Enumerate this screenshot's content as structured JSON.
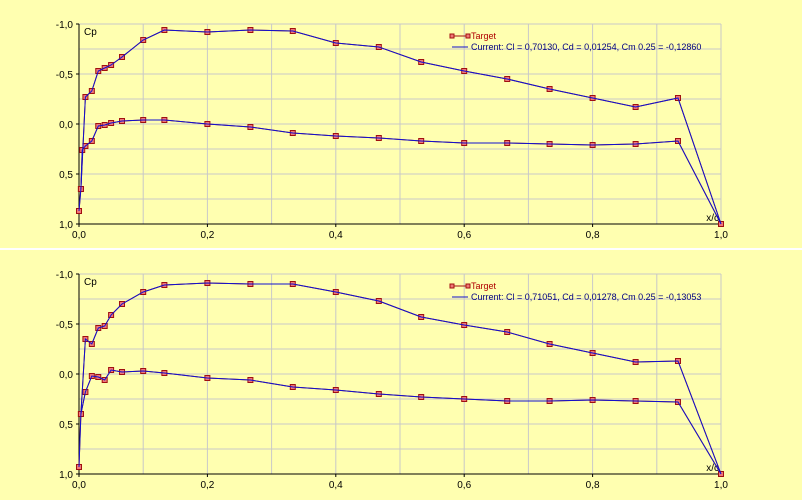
{
  "chart_data": [
    {
      "type": "line",
      "ylabel": "Cp",
      "xlabel": "x/c",
      "xlim": [
        0,
        1
      ],
      "ylim_inverted": [
        -1,
        1
      ],
      "x_ticks": [
        "0,0",
        "0,2",
        "0,4",
        "0,6",
        "0,8",
        "1,0"
      ],
      "y_ticks": [
        "-1,0",
        "-0,5",
        "0,0",
        "0,5",
        "1,0"
      ],
      "grid": true,
      "legend_position": "top-right",
      "series": [
        {
          "name": "Target",
          "markers": true,
          "upper": [
            [
              0,
              0.87
            ],
            [
              0.003,
              0.65
            ],
            [
              0.01,
              -0.27
            ],
            [
              0.02,
              -0.33
            ],
            [
              0.03,
              -0.53
            ],
            [
              0.04,
              -0.56
            ],
            [
              0.05,
              -0.59
            ],
            [
              0.067,
              -0.67
            ],
            [
              0.1,
              -0.84
            ],
            [
              0.133,
              -0.94
            ],
            [
              0.2,
              -0.92
            ],
            [
              0.267,
              -0.94
            ],
            [
              0.333,
              -0.93
            ],
            [
              0.4,
              -0.81
            ],
            [
              0.467,
              -0.77
            ],
            [
              0.533,
              -0.62
            ],
            [
              0.6,
              -0.53
            ],
            [
              0.667,
              -0.45
            ],
            [
              0.733,
              -0.35
            ],
            [
              0.8,
              -0.26
            ],
            [
              0.867,
              -0.17
            ],
            [
              0.933,
              -0.26
            ],
            [
              1.0,
              1.0
            ]
          ],
          "lower": [
            [
              0.003,
              0.65
            ],
            [
              0.005,
              0.26
            ],
            [
              0.01,
              0.22
            ],
            [
              0.02,
              0.17
            ],
            [
              0.03,
              0.02
            ],
            [
              0.04,
              0.01
            ],
            [
              0.05,
              -0.01
            ],
            [
              0.067,
              -0.03
            ],
            [
              0.1,
              -0.04
            ],
            [
              0.133,
              -0.04
            ],
            [
              0.2,
              0.0
            ],
            [
              0.267,
              0.03
            ],
            [
              0.333,
              0.09
            ],
            [
              0.4,
              0.12
            ],
            [
              0.467,
              0.14
            ],
            [
              0.533,
              0.17
            ],
            [
              0.6,
              0.19
            ],
            [
              0.667,
              0.19
            ],
            [
              0.733,
              0.2
            ],
            [
              0.8,
              0.21
            ],
            [
              0.867,
              0.2
            ],
            [
              0.933,
              0.17
            ],
            [
              1.0,
              1.0
            ]
          ]
        },
        {
          "name": "Current: Cl = 0,70130, Cd = 0,01254, Cm 0.25 = -0,12860",
          "markers": false,
          "upper": [
            [
              0,
              0.87
            ],
            [
              0.003,
              0.65
            ],
            [
              0.01,
              -0.27
            ],
            [
              0.02,
              -0.33
            ],
            [
              0.03,
              -0.53
            ],
            [
              0.04,
              -0.56
            ],
            [
              0.05,
              -0.59
            ],
            [
              0.067,
              -0.67
            ],
            [
              0.1,
              -0.84
            ],
            [
              0.133,
              -0.94
            ],
            [
              0.2,
              -0.92
            ],
            [
              0.267,
              -0.94
            ],
            [
              0.333,
              -0.93
            ],
            [
              0.4,
              -0.81
            ],
            [
              0.467,
              -0.77
            ],
            [
              0.533,
              -0.62
            ],
            [
              0.6,
              -0.53
            ],
            [
              0.667,
              -0.45
            ],
            [
              0.733,
              -0.35
            ],
            [
              0.8,
              -0.26
            ],
            [
              0.867,
              -0.17
            ],
            [
              0.933,
              -0.26
            ],
            [
              1.0,
              1.0
            ]
          ],
          "lower": [
            [
              0.003,
              0.65
            ],
            [
              0.005,
              0.26
            ],
            [
              0.01,
              0.22
            ],
            [
              0.02,
              0.17
            ],
            [
              0.03,
              0.02
            ],
            [
              0.04,
              0.01
            ],
            [
              0.05,
              -0.01
            ],
            [
              0.067,
              -0.03
            ],
            [
              0.1,
              -0.04
            ],
            [
              0.133,
              -0.04
            ],
            [
              0.2,
              0.0
            ],
            [
              0.267,
              0.03
            ],
            [
              0.333,
              0.09
            ],
            [
              0.4,
              0.12
            ],
            [
              0.467,
              0.14
            ],
            [
              0.533,
              0.17
            ],
            [
              0.6,
              0.19
            ],
            [
              0.667,
              0.19
            ],
            [
              0.733,
              0.2
            ],
            [
              0.8,
              0.21
            ],
            [
              0.867,
              0.2
            ],
            [
              0.933,
              0.17
            ],
            [
              1.0,
              1.0
            ]
          ]
        }
      ]
    },
    {
      "type": "line",
      "ylabel": "Cp",
      "xlabel": "x/c",
      "xlim": [
        0,
        1
      ],
      "ylim_inverted": [
        -1,
        1
      ],
      "x_ticks": [
        "0,0",
        "0,2",
        "0,4",
        "0,6",
        "0,8",
        "1,0"
      ],
      "y_ticks": [
        "-1,0",
        "-0,5",
        "0,0",
        "0,5",
        "1,0"
      ],
      "grid": true,
      "legend_position": "top-right",
      "series": [
        {
          "name": "Target",
          "markers": true,
          "upper": [
            [
              0,
              0.93
            ],
            [
              0.003,
              0.4
            ],
            [
              0.01,
              -0.35
            ],
            [
              0.02,
              -0.3
            ],
            [
              0.03,
              -0.46
            ],
            [
              0.04,
              -0.48
            ],
            [
              0.05,
              -0.59
            ],
            [
              0.067,
              -0.7
            ],
            [
              0.1,
              -0.82
            ],
            [
              0.133,
              -0.89
            ],
            [
              0.2,
              -0.91
            ],
            [
              0.267,
              -0.9
            ],
            [
              0.333,
              -0.9
            ],
            [
              0.4,
              -0.82
            ],
            [
              0.467,
              -0.73
            ],
            [
              0.533,
              -0.57
            ],
            [
              0.6,
              -0.49
            ],
            [
              0.667,
              -0.42
            ],
            [
              0.733,
              -0.3
            ],
            [
              0.8,
              -0.21
            ],
            [
              0.867,
              -0.12
            ],
            [
              0.933,
              -0.13
            ],
            [
              1.0,
              1.0
            ]
          ],
          "lower": [
            [
              0.003,
              0.4
            ],
            [
              0.01,
              0.18
            ],
            [
              0.02,
              0.02
            ],
            [
              0.03,
              0.03
            ],
            [
              0.04,
              0.06
            ],
            [
              0.05,
              -0.04
            ],
            [
              0.067,
              -0.02
            ],
            [
              0.1,
              -0.03
            ],
            [
              0.133,
              -0.01
            ],
            [
              0.2,
              0.04
            ],
            [
              0.267,
              0.06
            ],
            [
              0.333,
              0.13
            ],
            [
              0.4,
              0.16
            ],
            [
              0.467,
              0.2
            ],
            [
              0.533,
              0.23
            ],
            [
              0.6,
              0.25
            ],
            [
              0.667,
              0.27
            ],
            [
              0.733,
              0.27
            ],
            [
              0.8,
              0.26
            ],
            [
              0.867,
              0.27
            ],
            [
              0.933,
              0.28
            ],
            [
              1.0,
              1.0
            ]
          ]
        },
        {
          "name": "Current: Cl = 0,71051, Cd = 0,01278, Cm 0.25 = -0,13053",
          "markers": false,
          "upper": [
            [
              0,
              0.93
            ],
            [
              0.003,
              0.4
            ],
            [
              0.01,
              -0.35
            ],
            [
              0.02,
              -0.3
            ],
            [
              0.03,
              -0.46
            ],
            [
              0.04,
              -0.48
            ],
            [
              0.05,
              -0.59
            ],
            [
              0.067,
              -0.7
            ],
            [
              0.1,
              -0.82
            ],
            [
              0.133,
              -0.89
            ],
            [
              0.2,
              -0.91
            ],
            [
              0.267,
              -0.9
            ],
            [
              0.333,
              -0.9
            ],
            [
              0.4,
              -0.82
            ],
            [
              0.467,
              -0.73
            ],
            [
              0.533,
              -0.57
            ],
            [
              0.6,
              -0.49
            ],
            [
              0.667,
              -0.42
            ],
            [
              0.733,
              -0.3
            ],
            [
              0.8,
              -0.21
            ],
            [
              0.867,
              -0.12
            ],
            [
              0.933,
              -0.13
            ],
            [
              1.0,
              1.0
            ]
          ],
          "lower": [
            [
              0.003,
              0.4
            ],
            [
              0.01,
              0.18
            ],
            [
              0.02,
              0.02
            ],
            [
              0.03,
              0.03
            ],
            [
              0.04,
              0.06
            ],
            [
              0.05,
              -0.04
            ],
            [
              0.067,
              -0.02
            ],
            [
              0.1,
              -0.03
            ],
            [
              0.133,
              -0.01
            ],
            [
              0.2,
              0.04
            ],
            [
              0.267,
              0.06
            ],
            [
              0.333,
              0.13
            ],
            [
              0.4,
              0.16
            ],
            [
              0.467,
              0.2
            ],
            [
              0.533,
              0.23
            ],
            [
              0.6,
              0.25
            ],
            [
              0.667,
              0.27
            ],
            [
              0.733,
              0.27
            ],
            [
              0.8,
              0.26
            ],
            [
              0.867,
              0.27
            ],
            [
              0.933,
              0.28
            ],
            [
              1.0,
              1.0
            ]
          ]
        }
      ]
    }
  ],
  "colors": {
    "background": "#ffffb0",
    "grid": "#c8c8c8",
    "target_line": "#a01010",
    "target_marker_fill": "#f07878",
    "current_line": "#1010d0",
    "legend_target_text": "#b00000",
    "legend_current_text": "#000080"
  }
}
